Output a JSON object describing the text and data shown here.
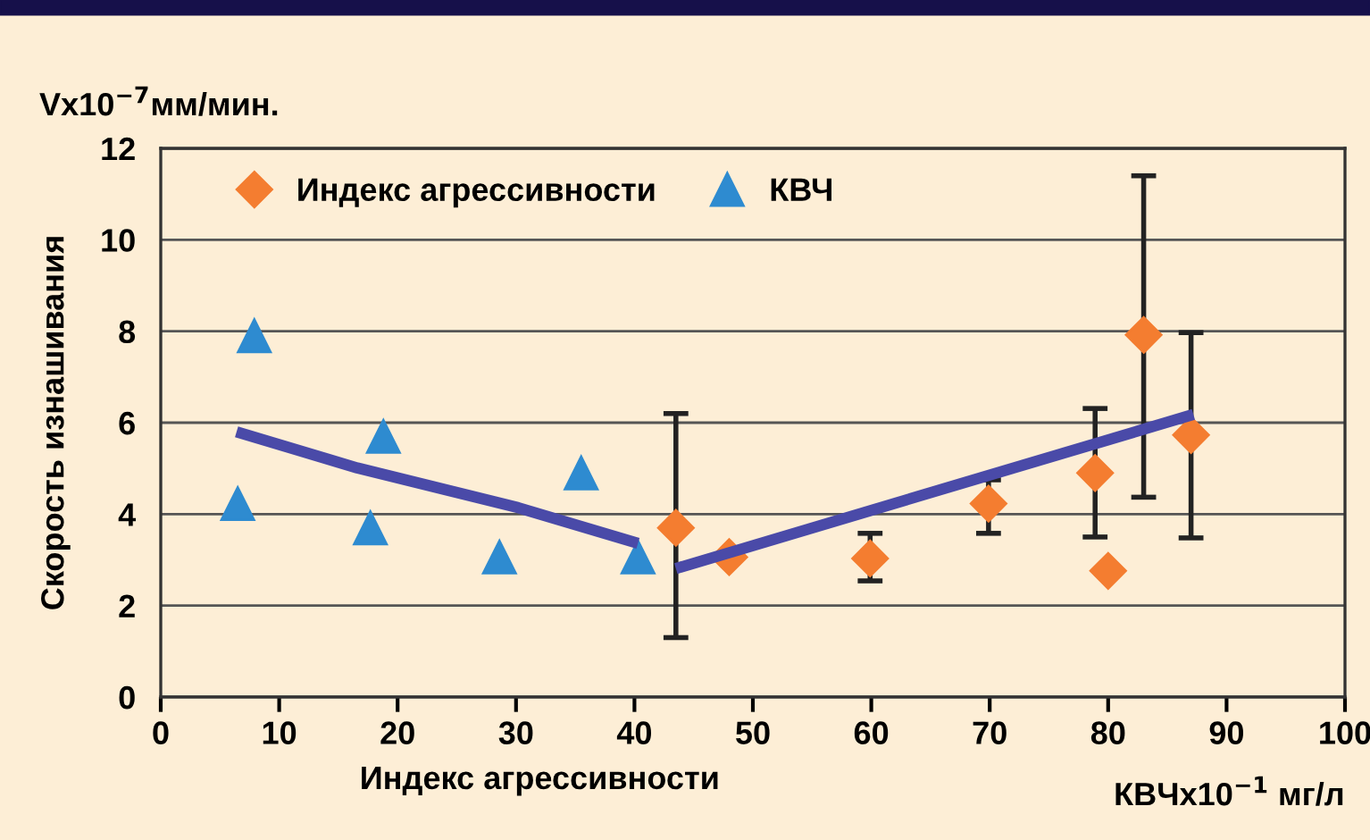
{
  "chart_data": {
    "type": "scatter",
    "xlabel": "Индекс агрессивности",
    "ylabel": "Скорость изнашивания",
    "annotations": [
      "Vx10$^{−7}$мм/мин.",
      "КВЧx10$^{−1}$ мг/л"
    ],
    "xlim": [
      0,
      100
    ],
    "xticks": [
      0,
      10,
      20,
      30,
      40,
      50,
      60,
      70,
      80,
      90,
      100
    ],
    "ylim": [
      0,
      12
    ],
    "yticks": [
      0,
      2,
      4,
      6,
      8,
      10,
      12
    ],
    "grid": "y",
    "legend": "top",
    "series": [
      {
        "name": "Индекс агрессивности",
        "marker": "diamond",
        "color": "#f47d30",
        "x": [
          43.5,
          48.0,
          59.9,
          69.9,
          78.9,
          80.0,
          83.0,
          87.0
        ],
        "values": [
          3.7,
          3.06,
          3.03,
          4.23,
          4.9,
          2.76,
          7.92,
          5.73
        ],
        "errors": [
          [
            1.3,
            6.2
          ],
          null,
          [
            2.54,
            3.58
          ],
          [
            3.58,
            4.75
          ],
          [
            3.5,
            6.31
          ],
          null,
          [
            4.37,
            11.4
          ],
          [
            3.48,
            7.97
          ]
        ]
      },
      {
        "name": "КВЧ",
        "marker": "triangle",
        "color": "#2e8bd0",
        "x": [
          6.5,
          7.9,
          17.7,
          18.8,
          28.6,
          35.5,
          40.3
        ],
        "values": [
          4.23,
          7.9,
          3.7,
          5.7,
          3.06,
          4.9,
          3.06
        ]
      },
      {
        "type": "line",
        "color": "#4a4aa8",
        "x": [
          6.4,
          16.6,
          30.2,
          40.3
        ],
        "values": [
          5.8,
          5.01,
          4.14,
          3.36
        ]
      },
      {
        "type": "line",
        "color": "#4a4aa8",
        "x": [
          43.5,
          87.2
        ],
        "values": [
          2.81,
          6.18
        ]
      }
    ]
  }
}
